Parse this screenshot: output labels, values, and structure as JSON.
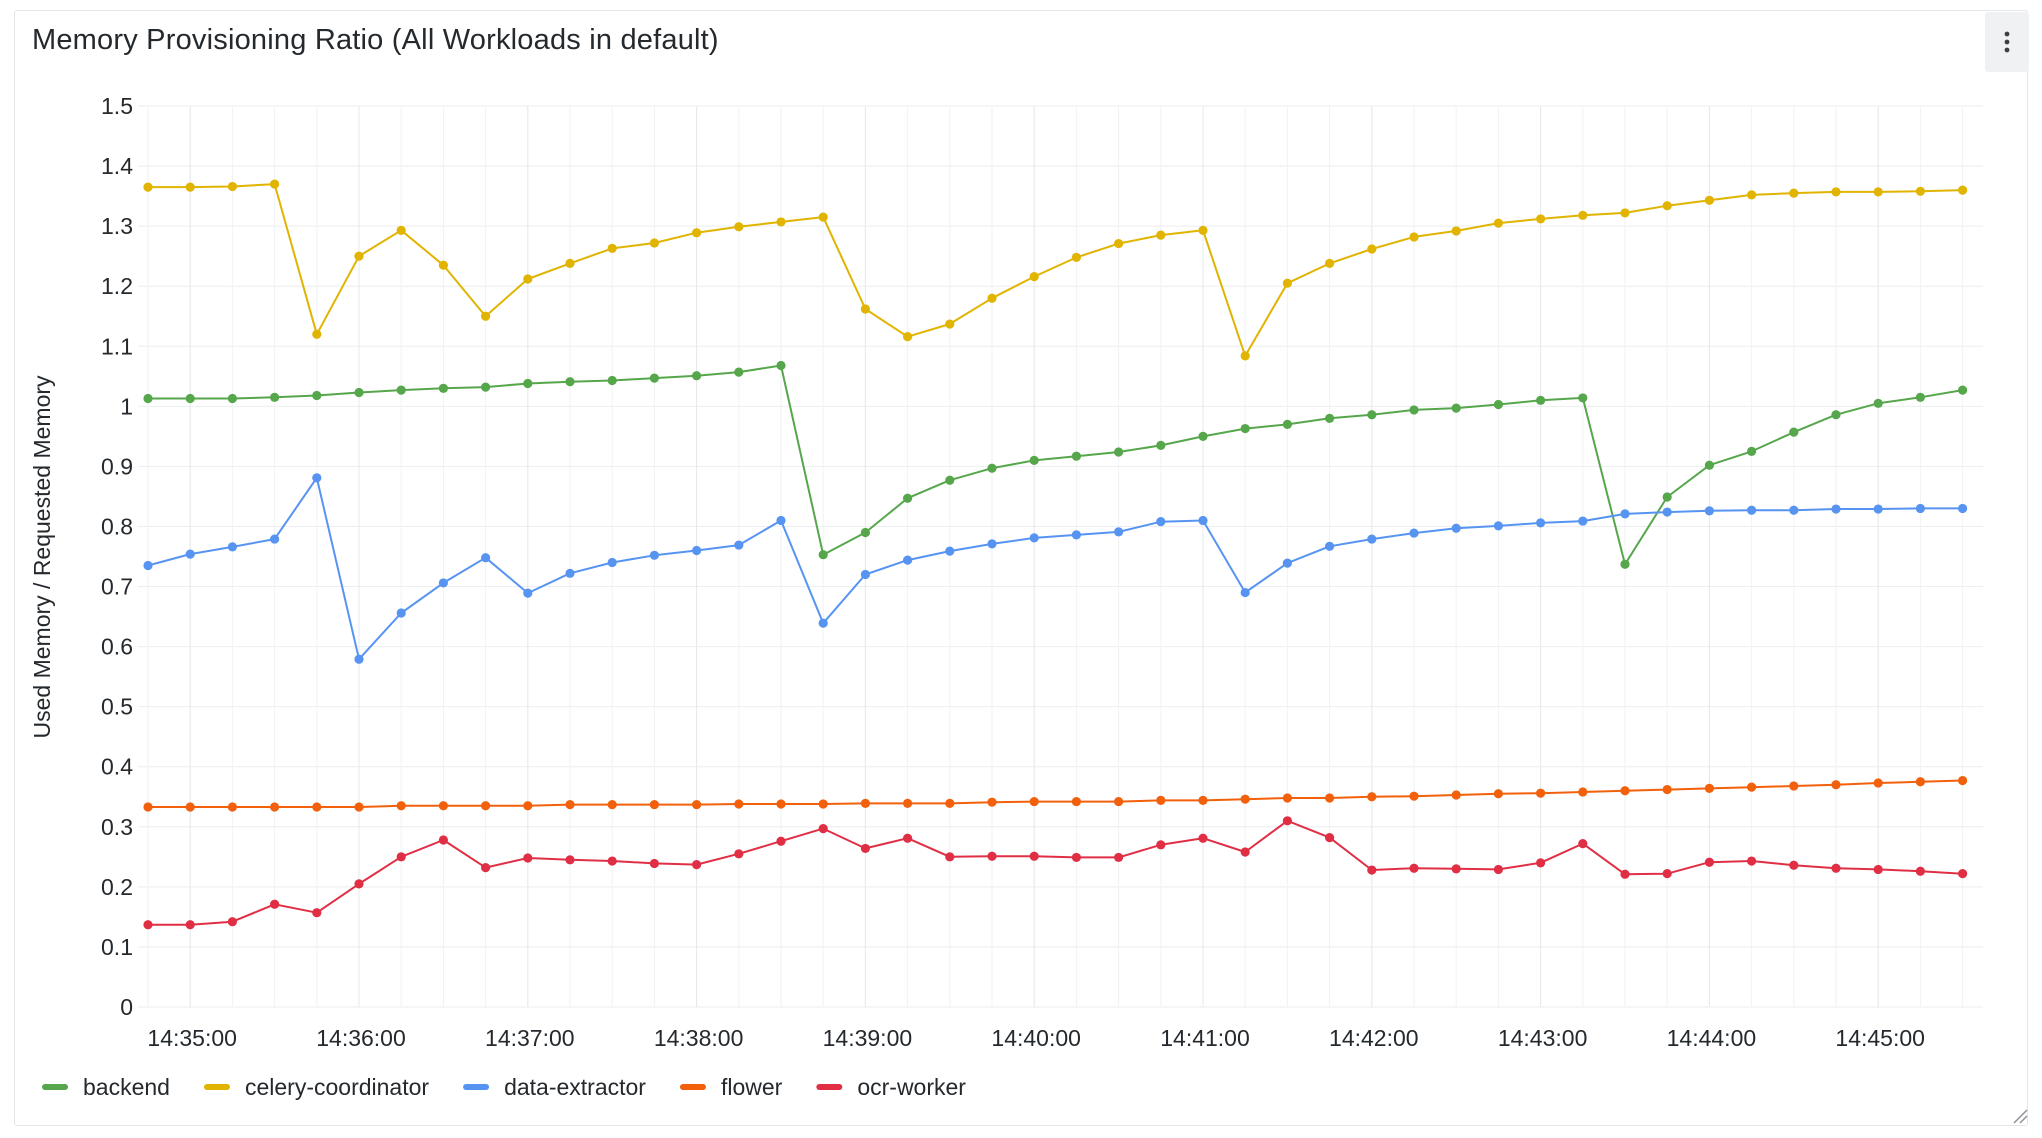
{
  "panel": {
    "title": "Memory Provisioning Ratio (All Workloads in default)",
    "menu_icon": "kebab-menu-icon"
  },
  "chart_data": {
    "type": "line",
    "title": "Memory Provisioning Ratio (All Workloads in default)",
    "xlabel": "",
    "ylabel": "Used Memory / Requested Memory",
    "ylim": [
      0,
      1.5
    ],
    "yticks": [
      "0",
      "0.1",
      "0.2",
      "0.3",
      "0.4",
      "0.5",
      "0.6",
      "0.7",
      "0.8",
      "0.9",
      "1",
      "1.1",
      "1.2",
      "1.3",
      "1.4",
      "1.5"
    ],
    "xtick_labels": [
      "14:35:00",
      "14:36:00",
      "14:37:00",
      "14:38:00",
      "14:39:00",
      "14:40:00",
      "14:41:00",
      "14:42:00",
      "14:43:00",
      "14:44:00",
      "14:45:00"
    ],
    "x_start": "14:34:45",
    "x_step_seconds": 15,
    "grid": true,
    "legend_position": "bottom-left",
    "series": [
      {
        "name": "backend",
        "color": "#56a64b",
        "values": [
          1.013,
          1.013,
          1.013,
          1.015,
          1.018,
          1.023,
          1.027,
          1.03,
          1.032,
          1.038,
          1.041,
          1.043,
          1.047,
          1.051,
          1.057,
          1.068,
          0.753,
          0.79,
          0.847,
          0.877,
          0.897,
          0.91,
          0.917,
          0.924,
          0.935,
          0.95,
          0.963,
          0.97,
          0.98,
          0.986,
          0.994,
          0.997,
          1.003,
          1.01,
          1.014,
          0.737,
          0.849,
          0.902,
          0.925,
          0.957,
          0.986,
          1.005,
          1.015,
          1.027
        ]
      },
      {
        "name": "celery-coordinator",
        "color": "#e0b400",
        "values": [
          1.365,
          1.365,
          1.366,
          1.37,
          1.12,
          1.25,
          1.293,
          1.235,
          1.15,
          1.212,
          1.238,
          1.263,
          1.272,
          1.289,
          1.299,
          1.307,
          1.315,
          1.162,
          1.116,
          1.137,
          1.18,
          1.216,
          1.248,
          1.271,
          1.285,
          1.293,
          1.084,
          1.205,
          1.238,
          1.262,
          1.282,
          1.292,
          1.305,
          1.312,
          1.318,
          1.322,
          1.334,
          1.343,
          1.352,
          1.355,
          1.357,
          1.357,
          1.358,
          1.36
        ]
      },
      {
        "name": "data-extractor",
        "color": "#5794f2",
        "values": [
          0.735,
          0.754,
          0.766,
          0.779,
          0.881,
          0.579,
          0.656,
          0.706,
          0.748,
          0.689,
          0.722,
          0.74,
          0.752,
          0.76,
          0.769,
          0.81,
          0.639,
          0.72,
          0.744,
          0.759,
          0.771,
          0.781,
          0.786,
          0.791,
          0.808,
          0.81,
          0.69,
          0.739,
          0.767,
          0.779,
          0.789,
          0.797,
          0.801,
          0.806,
          0.809,
          0.821,
          0.824,
          0.826,
          0.827,
          0.827,
          0.829,
          0.829,
          0.83,
          0.83
        ]
      },
      {
        "name": "flower",
        "color": "#f2600c",
        "values": [
          0.333,
          0.333,
          0.333,
          0.333,
          0.333,
          0.333,
          0.335,
          0.335,
          0.335,
          0.335,
          0.337,
          0.337,
          0.337,
          0.337,
          0.338,
          0.338,
          0.338,
          0.339,
          0.339,
          0.339,
          0.341,
          0.342,
          0.342,
          0.342,
          0.344,
          0.344,
          0.346,
          0.348,
          0.348,
          0.35,
          0.351,
          0.353,
          0.355,
          0.356,
          0.358,
          0.36,
          0.362,
          0.364,
          0.366,
          0.368,
          0.37,
          0.373,
          0.375,
          0.377
        ]
      },
      {
        "name": "ocr-worker",
        "color": "#e02f44",
        "values": [
          0.137,
          0.137,
          0.142,
          0.171,
          0.157,
          0.205,
          0.25,
          0.278,
          0.232,
          0.248,
          0.245,
          0.243,
          0.239,
          0.237,
          0.255,
          0.276,
          0.297,
          0.264,
          0.281,
          0.25,
          0.251,
          0.251,
          0.249,
          0.249,
          0.27,
          0.281,
          0.258,
          0.31,
          0.282,
          0.228,
          0.231,
          0.23,
          0.229,
          0.24,
          0.272,
          0.221,
          0.222,
          0.241,
          0.243,
          0.236,
          0.231,
          0.229,
          0.226,
          0.222
        ]
      }
    ]
  }
}
